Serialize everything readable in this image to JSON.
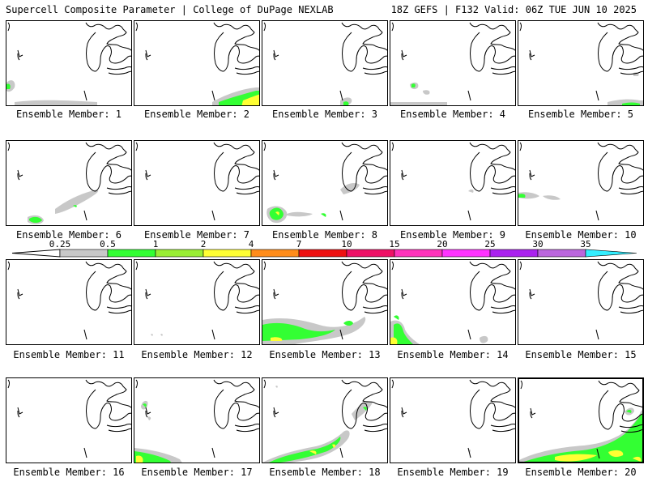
{
  "header": {
    "left": "Supercell Composite Parameter | College of DuPage NEXLAB",
    "right": "18Z GEFS | F132 Valid: 06Z TUE JUN 10 2025"
  },
  "colorbar": {
    "levels": [
      "0.25",
      "0.5",
      "1",
      "2",
      "4",
      "7",
      "10",
      "15",
      "20",
      "25",
      "30",
      "35"
    ],
    "colors": [
      "#c8c8c8",
      "#33ff33",
      "#99ee33",
      "#ffff33",
      "#ff8c1a",
      "#ee1111",
      "#ee1166",
      "#ff33bb",
      "#ff33ff",
      "#aa22ee",
      "#bb66dd",
      "#33eeff"
    ]
  },
  "members": [
    {
      "label": "Ensemble Member: 1"
    },
    {
      "label": "Ensemble Member: 2"
    },
    {
      "label": "Ensemble Member: 3"
    },
    {
      "label": "Ensemble Member: 4"
    },
    {
      "label": "Ensemble Member: 5"
    },
    {
      "label": "Ensemble Member: 6"
    },
    {
      "label": "Ensemble Member: 7"
    },
    {
      "label": "Ensemble Member: 8"
    },
    {
      "label": "Ensemble Member: 9"
    },
    {
      "label": "Ensemble Member: 10"
    },
    {
      "label": "Ensemble Member: 11"
    },
    {
      "label": "Ensemble Member: 12"
    },
    {
      "label": "Ensemble Member: 13"
    },
    {
      "label": "Ensemble Member: 14"
    },
    {
      "label": "Ensemble Member: 15"
    },
    {
      "label": "Ensemble Member: 16"
    },
    {
      "label": "Ensemble Member: 17"
    },
    {
      "label": "Ensemble Member: 18"
    },
    {
      "label": "Ensemble Member: 19"
    },
    {
      "label": "Ensemble Member: 20"
    }
  ]
}
